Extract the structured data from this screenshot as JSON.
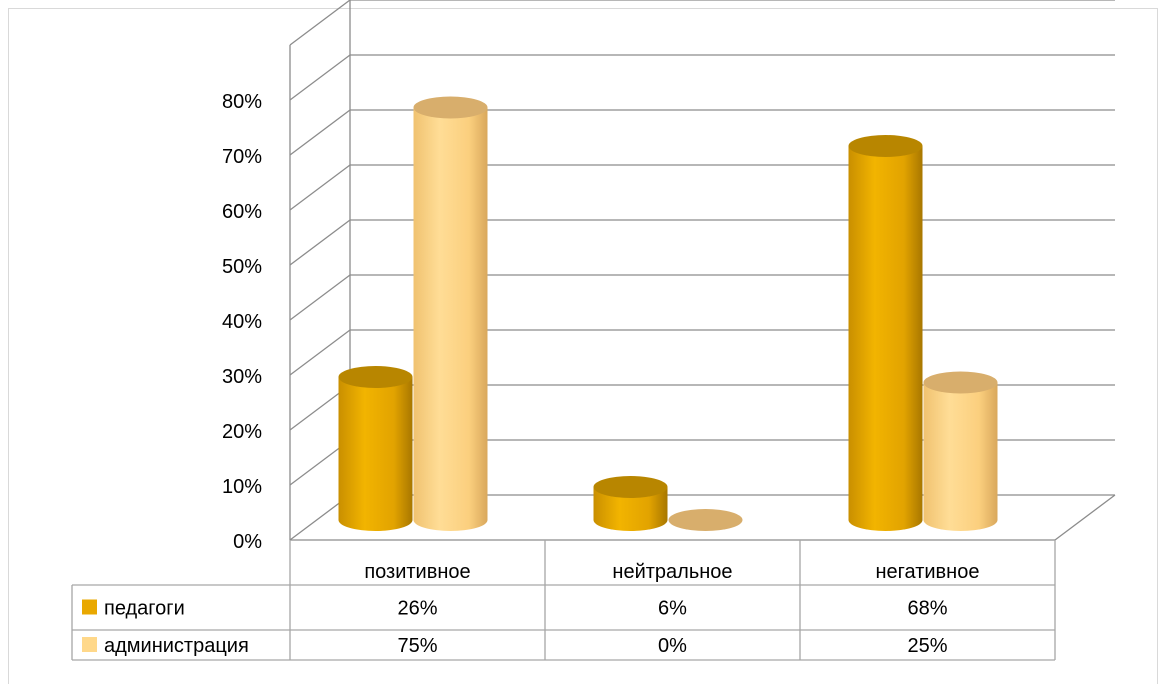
{
  "chart_data": {
    "type": "bar",
    "categories": [
      "позитивное",
      "нейтральное",
      "негативное"
    ],
    "series": [
      {
        "name": "педагоги",
        "values": [
          26,
          6,
          68
        ],
        "labels": [
          "26%",
          "6%",
          "68%"
        ],
        "color": "#E9A800"
      },
      {
        "name": "администрация",
        "values": [
          75,
          0,
          25
        ],
        "labels": [
          "75%",
          "0%",
          "25%"
        ],
        "color": "#FFD88A"
      }
    ],
    "yticks": [
      "0%",
      "10%",
      "20%",
      "30%",
      "40%",
      "50%",
      "60%",
      "70%",
      "80%"
    ],
    "ylim": [
      0,
      80
    ],
    "grid": true,
    "legend": "data-table",
    "style": "3d-cylinder"
  }
}
